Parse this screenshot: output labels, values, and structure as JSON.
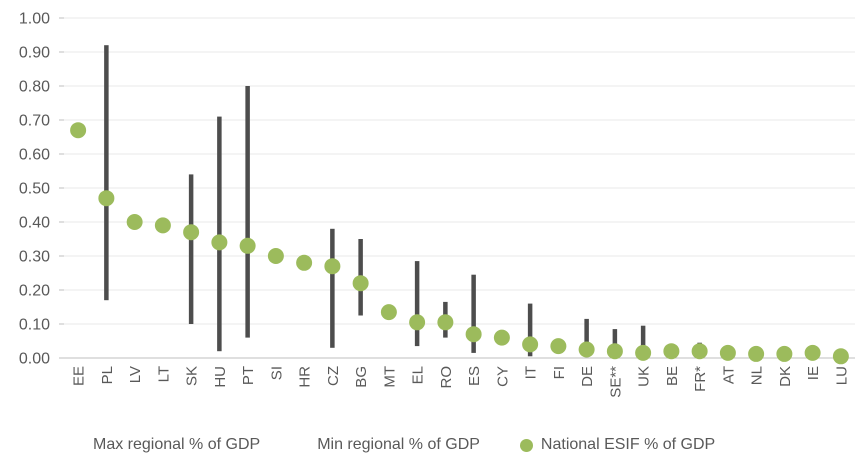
{
  "chart_data": {
    "type": "scatter",
    "title": "",
    "xlabel": "",
    "ylabel": "",
    "categories": [
      "EE",
      "PL",
      "LV",
      "LT",
      "SK",
      "HU",
      "PT",
      "SI",
      "HR",
      "CZ",
      "BG",
      "MT",
      "EL",
      "RO",
      "ES",
      "CY",
      "IT",
      "FI",
      "DE",
      "SE**",
      "UK",
      "BE",
      "FR*",
      "AT",
      "NL",
      "DK",
      "IE",
      "LU"
    ],
    "series": [
      {
        "name": "Max regional % of GDP",
        "marker": "none",
        "values": [
          0.67,
          0.92,
          0.4,
          0.39,
          0.54,
          0.71,
          0.8,
          0.3,
          0.28,
          0.38,
          0.35,
          0.135,
          0.285,
          0.165,
          0.245,
          0.06,
          0.16,
          0.035,
          0.115,
          0.085,
          0.095,
          0.035,
          0.045,
          0.015,
          0.012,
          0.012,
          0.03,
          0.005
        ]
      },
      {
        "name": "Min regional % of GDP",
        "marker": "none",
        "values": [
          0.67,
          0.17,
          0.4,
          0.39,
          0.1,
          0.02,
          0.06,
          0.3,
          0.28,
          0.03,
          0.125,
          0.135,
          0.035,
          0.06,
          0.015,
          0.06,
          0.005,
          0.035,
          0.01,
          0.005,
          0.005,
          0.015,
          0.01,
          0.015,
          0.012,
          0.012,
          0.01,
          0.005
        ]
      },
      {
        "name": "National ESIF % of GDP",
        "marker": "circle",
        "values": [
          0.67,
          0.47,
          0.4,
          0.39,
          0.37,
          0.34,
          0.33,
          0.3,
          0.28,
          0.27,
          0.22,
          0.135,
          0.105,
          0.105,
          0.07,
          0.06,
          0.04,
          0.035,
          0.025,
          0.02,
          0.015,
          0.02,
          0.02,
          0.015,
          0.012,
          0.012,
          0.015,
          0.005
        ]
      }
    ],
    "ylim": [
      0,
      1
    ],
    "yticks": [
      0,
      0.1,
      0.2,
      0.3,
      0.4,
      0.5,
      0.6,
      0.7,
      0.8,
      0.9,
      1.0
    ],
    "ytick_labels": [
      "0.00",
      "0.10",
      "0.20",
      "0.30",
      "0.40",
      "0.50",
      "0.60",
      "0.70",
      "0.80",
      "0.90",
      "1.00"
    ],
    "grid": true,
    "legend_position": "bottom",
    "range_bar_between": [
      "Max regional % of GDP",
      "Min regional % of GDP"
    ],
    "colors": {
      "dot": "#9CBB5C",
      "range_bar": "#4D4D4D",
      "gridline": "#EAEAEA",
      "axis_line": "#BFBFBF",
      "tick_text": "#595959",
      "legend_text": "#595959",
      "background": "#FFFFFF"
    }
  }
}
